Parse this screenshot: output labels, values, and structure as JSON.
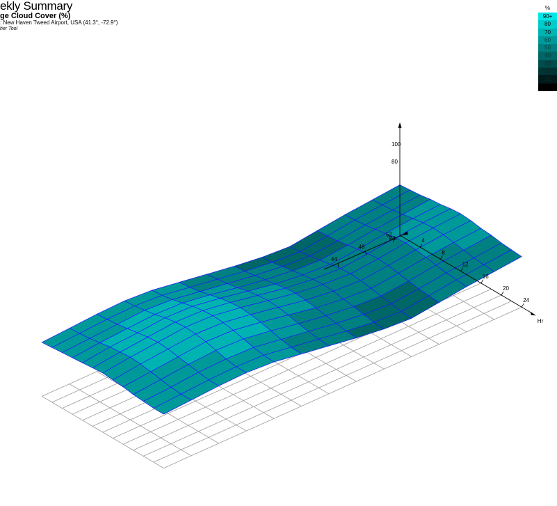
{
  "header": {
    "title": "ekly Summary",
    "subtitle": "ge Cloud Cover (%)",
    "location": ": New Haven Tweed Airport, USA (41.3°, -72.9°)",
    "credit": "her Tool"
  },
  "legend": {
    "unit": "%",
    "entries": [
      {
        "label": "90+",
        "color": "#00e6e6"
      },
      {
        "label": "80",
        "color": "#00cccc"
      },
      {
        "label": "70",
        "color": "#00b3b3"
      },
      {
        "label": "60",
        "color": "#009999"
      },
      {
        "label": "50",
        "color": "#008080"
      },
      {
        "label": "40",
        "color": "#006666"
      },
      {
        "label": "30",
        "color": "#004d4d"
      },
      {
        "label": "20",
        "color": "#003333"
      },
      {
        "label": "10",
        "color": "#001a1a"
      },
      {
        "label": "",
        "color": "#000000"
      }
    ]
  },
  "chart_data": {
    "type": "3d-surface",
    "xlabel": "Hr",
    "ylabel": "Wk",
    "zlabel": "",
    "x_ticks": [
      "4",
      "8",
      "12",
      "16",
      "20",
      "24"
    ],
    "y_ticks": [
      "44",
      "48",
      "52"
    ],
    "z_ticks": [
      "80",
      "100"
    ],
    "xlim": [
      0,
      24
    ],
    "ylim": [
      1,
      53
    ],
    "zlim": [
      0,
      100
    ],
    "surface_description": "Average cloud cover (%) by hour of day (x) and week of year (y); mean around 55-60%, highest in spring weeks, lowest in late summer/early autumn weeks",
    "hours": [
      0,
      2,
      4,
      6,
      8,
      10,
      12,
      14,
      16,
      18,
      20,
      22,
      24
    ],
    "weeks": [
      1,
      5,
      9,
      13,
      17,
      21,
      25,
      29,
      33,
      37,
      41,
      45,
      49,
      53
    ],
    "values": [
      [
        62,
        63,
        64,
        65,
        66,
        67,
        68,
        67,
        66,
        64,
        63,
        62,
        62
      ],
      [
        64,
        65,
        66,
        68,
        70,
        71,
        72,
        71,
        69,
        67,
        65,
        64,
        64
      ],
      [
        66,
        67,
        68,
        70,
        72,
        74,
        75,
        74,
        72,
        70,
        68,
        66,
        66
      ],
      [
        67,
        68,
        70,
        72,
        75,
        77,
        78,
        77,
        75,
        72,
        69,
        67,
        67
      ],
      [
        65,
        66,
        68,
        71,
        74,
        76,
        77,
        76,
        74,
        71,
        68,
        66,
        65
      ],
      [
        60,
        61,
        63,
        66,
        69,
        71,
        72,
        71,
        69,
        66,
        63,
        61,
        60
      ],
      [
        55,
        56,
        58,
        60,
        63,
        65,
        66,
        65,
        63,
        60,
        58,
        56,
        55
      ],
      [
        50,
        51,
        53,
        55,
        57,
        59,
        60,
        59,
        57,
        55,
        53,
        51,
        50
      ],
      [
        46,
        47,
        49,
        51,
        53,
        55,
        56,
        55,
        53,
        51,
        49,
        47,
        46
      ],
      [
        44,
        45,
        47,
        49,
        51,
        53,
        54,
        53,
        51,
        49,
        47,
        45,
        44
      ],
      [
        48,
        49,
        50,
        52,
        54,
        56,
        57,
        56,
        54,
        52,
        50,
        49,
        48
      ],
      [
        52,
        53,
        54,
        56,
        58,
        60,
        61,
        60,
        58,
        56,
        54,
        53,
        52
      ],
      [
        55,
        56,
        57,
        59,
        61,
        63,
        64,
        63,
        61,
        59,
        57,
        56,
        55
      ],
      [
        58,
        59,
        60,
        62,
        63,
        65,
        66,
        65,
        63,
        62,
        60,
        59,
        58
      ]
    ],
    "grid": true,
    "legend_position": "top-right"
  }
}
